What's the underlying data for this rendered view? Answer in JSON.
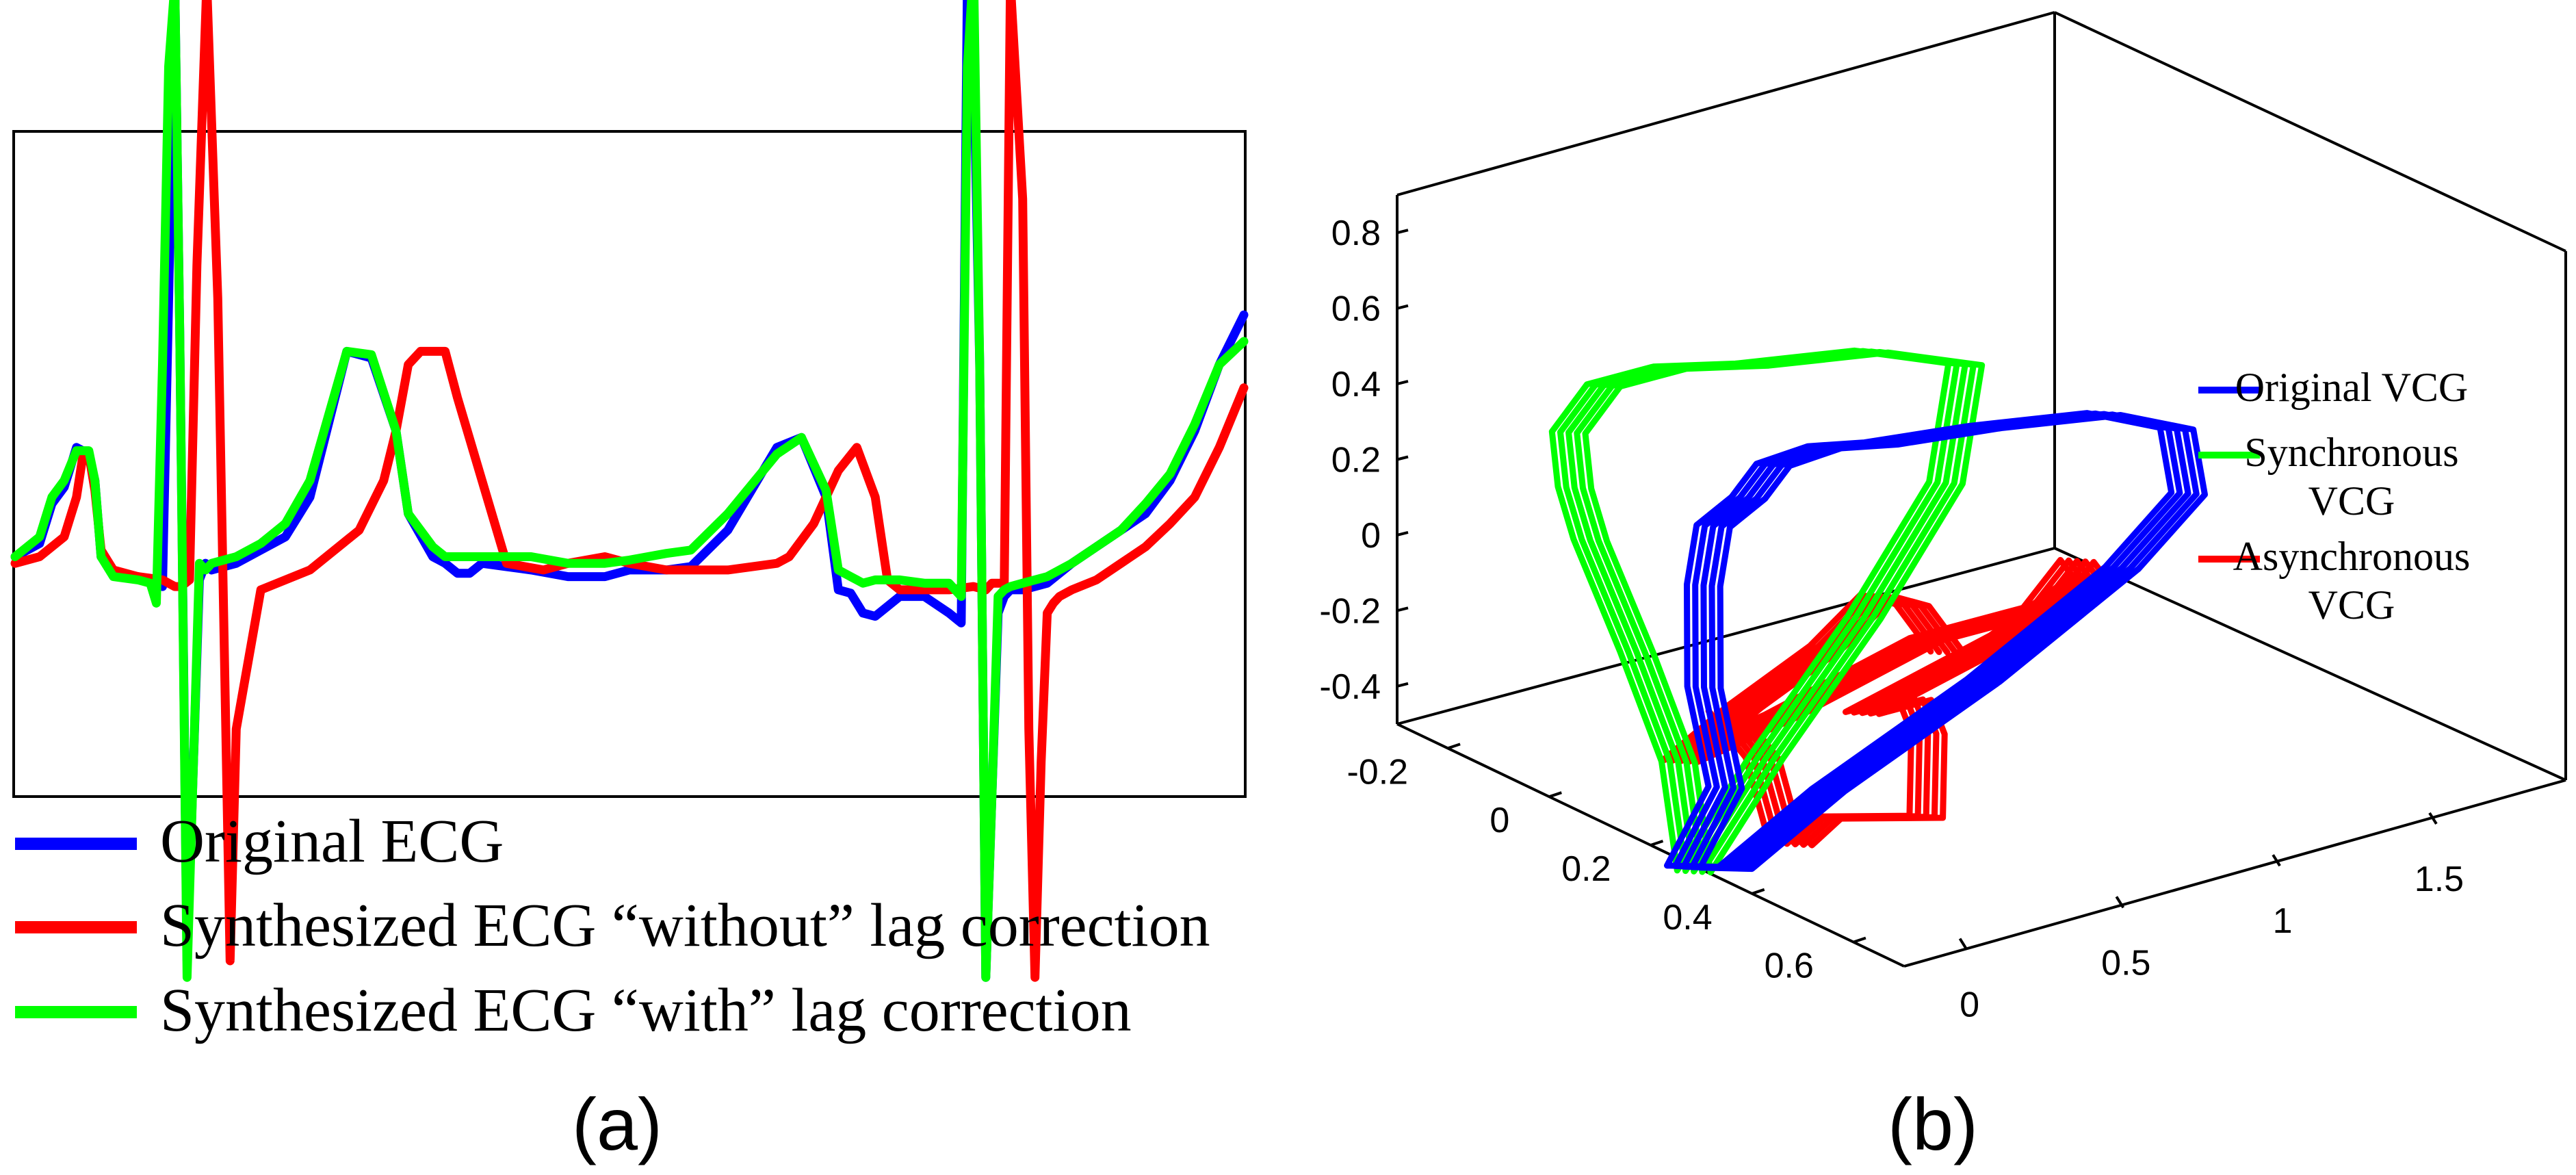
{
  "panel_a": {
    "caption": "(a)",
    "legend": [
      {
        "label": "Original ECG",
        "color": "#0000ff"
      },
      {
        "label": "Synthesized ECG “without” lag correction",
        "color": "#ff0000"
      },
      {
        "label": "Synthesized ECG “with” lag correction",
        "color": "#00ff00"
      }
    ]
  },
  "panel_b": {
    "caption": "(b)",
    "legend": [
      {
        "label_lines": [
          "Original VCG"
        ],
        "color": "#0000ff"
      },
      {
        "label_lines": [
          "Synchronous",
          "VCG"
        ],
        "color": "#00ff00"
      },
      {
        "label_lines": [
          "Asynchronous",
          "VCG"
        ],
        "color": "#ff0000"
      }
    ]
  },
  "chart_data": [
    {
      "type": "line",
      "title": "",
      "xlabel": "",
      "ylabel": "",
      "xlim": [
        0,
        100
      ],
      "ylim": [
        -1.0,
        1.0
      ],
      "axes_visible": false,
      "grid": false,
      "legend_position": "below",
      "series": [
        {
          "name": "Original ECG",
          "color": "#0000ff",
          "x": [
            0,
            2,
            3,
            4,
            5,
            6,
            6.5,
            7,
            8,
            10,
            11,
            12,
            12.5,
            13,
            13.4,
            14,
            15,
            15.5,
            16,
            18,
            20,
            22,
            24,
            27,
            29,
            31,
            32,
            34,
            35,
            36,
            37,
            38,
            40,
            42,
            45,
            48,
            50,
            53,
            55,
            58,
            62,
            64,
            66,
            67,
            68,
            68.5,
            69,
            70,
            72,
            74,
            76,
            77,
            77.5,
            78,
            78.5,
            79,
            79.5,
            80,
            80.5,
            81,
            82,
            84,
            86,
            88,
            90,
            92,
            94,
            96,
            98,
            100
          ],
          "y": [
            -0.28,
            -0.24,
            -0.12,
            -0.07,
            0.05,
            0.03,
            -0.05,
            -0.28,
            -0.33,
            -0.34,
            -0.35,
            -0.37,
            0.5,
            1.45,
            0.4,
            -1.5,
            -0.35,
            -0.3,
            -0.32,
            -0.3,
            -0.26,
            -0.22,
            -0.1,
            0.34,
            0.32,
            0.1,
            -0.15,
            -0.28,
            -0.3,
            -0.33,
            -0.33,
            -0.3,
            -0.31,
            -0.32,
            -0.34,
            -0.34,
            -0.32,
            -0.32,
            -0.31,
            -0.2,
            0.05,
            0.08,
            -0.1,
            -0.38,
            -0.39,
            -0.42,
            -0.45,
            -0.46,
            -0.4,
            -0.4,
            -0.45,
            -0.48,
            1.45,
            1.25,
            0.3,
            -1.55,
            -1.0,
            -0.45,
            -0.4,
            -0.38,
            -0.38,
            -0.36,
            -0.3,
            -0.25,
            -0.2,
            -0.15,
            -0.05,
            0.1,
            0.3,
            0.45
          ]
        },
        {
          "name": "Synthesized ECG “without” lag correction",
          "color": "#ff0000",
          "x": [
            0,
            2,
            4,
            5,
            5.5,
            6,
            6.5,
            7,
            8,
            10,
            12,
            13,
            13.5,
            14.2,
            14.8,
            15.6,
            16.5,
            17.5,
            18,
            20,
            22,
            24,
            26,
            28,
            30,
            31,
            32,
            33,
            35,
            36,
            38,
            40,
            43,
            45,
            48,
            50,
            53,
            55,
            58,
            62,
            63,
            65,
            67,
            68.5,
            70,
            71,
            72,
            74,
            76,
            78,
            79,
            79.5,
            80.5,
            81,
            82,
            82.5,
            83,
            83.5,
            84,
            84.5,
            85,
            86,
            88,
            90,
            92,
            94,
            96,
            98,
            100
          ],
          "y": [
            -0.3,
            -0.28,
            -0.22,
            -0.1,
            0.02,
            0.03,
            -0.08,
            -0.26,
            -0.32,
            -0.34,
            -0.35,
            -0.37,
            -0.37,
            -0.35,
            0.6,
            1.45,
            0.5,
            -1.5,
            -0.8,
            -0.38,
            -0.35,
            -0.32,
            -0.26,
            -0.2,
            -0.05,
            0.1,
            0.3,
            0.34,
            0.34,
            0.2,
            -0.05,
            -0.3,
            -0.32,
            -0.3,
            -0.28,
            -0.3,
            -0.32,
            -0.32,
            -0.32,
            -0.3,
            -0.28,
            -0.18,
            -0.02,
            0.05,
            -0.1,
            -0.35,
            -0.38,
            -0.38,
            -0.38,
            -0.37,
            -0.38,
            -0.36,
            -0.36,
            1.45,
            0.8,
            -0.8,
            -1.55,
            -0.9,
            -0.45,
            -0.42,
            -0.4,
            -0.38,
            -0.35,
            -0.3,
            -0.25,
            -0.18,
            -0.1,
            0.05,
            0.23
          ]
        },
        {
          "name": "Synthesized ECG “with” lag correction",
          "color": "#00ff00",
          "x": [
            0,
            2,
            3,
            4,
            5,
            6,
            6.5,
            7,
            8,
            10,
            11,
            11.5,
            12,
            12.5,
            13,
            13.4,
            14,
            15,
            15.5,
            16,
            18,
            20,
            22,
            24,
            27,
            29,
            31,
            32,
            34,
            35,
            36,
            38,
            40,
            42,
            45,
            48,
            50,
            53,
            55,
            58,
            62,
            64,
            66,
            67,
            68,
            68.5,
            69,
            70,
            72,
            74,
            76,
            77,
            77.5,
            78,
            78.5,
            79,
            79.5,
            80,
            80.5,
            81,
            82,
            84,
            86,
            88,
            90,
            92,
            94,
            96,
            98,
            100
          ],
          "y": [
            -0.28,
            -0.22,
            -0.1,
            -0.05,
            0.04,
            0.04,
            -0.05,
            -0.28,
            -0.34,
            -0.35,
            -0.36,
            -0.42,
            0.3,
            1.2,
            1.45,
            0.4,
            -1.55,
            -0.3,
            -0.32,
            -0.3,
            -0.28,
            -0.24,
            -0.18,
            -0.05,
            0.34,
            0.33,
            0.1,
            -0.15,
            -0.25,
            -0.28,
            -0.28,
            -0.28,
            -0.28,
            -0.28,
            -0.3,
            -0.3,
            -0.29,
            -0.27,
            -0.26,
            -0.15,
            0.03,
            0.08,
            -0.08,
            -0.32,
            -0.34,
            -0.35,
            -0.36,
            -0.35,
            -0.35,
            -0.36,
            -0.36,
            -0.4,
            1.2,
            1.5,
            0.3,
            -1.55,
            -1.0,
            -0.4,
            -0.38,
            -0.37,
            -0.36,
            -0.34,
            -0.3,
            -0.25,
            -0.2,
            -0.12,
            -0.03,
            0.12,
            0.3,
            0.37
          ]
        }
      ]
    },
    {
      "type": "line3d",
      "title": "",
      "xlabel": "",
      "ylabel": "",
      "zlabel": "",
      "xlim": [
        -0.3,
        0.7
      ],
      "ylim": [
        -0.2,
        1.9
      ],
      "zlim": [
        -0.5,
        0.9
      ],
      "x_ticks": [
        "-0.2",
        "0",
        "0.2",
        "0.4",
        "0.6"
      ],
      "y_ticks": [
        "0",
        "0.5",
        "1",
        "1.5"
      ],
      "z_ticks": [
        "-0.4",
        "-0.2",
        "0",
        "0.2",
        "0.4",
        "0.6",
        "0.8"
      ],
      "grid": false,
      "legend_position": "right",
      "series": [
        {
          "name": "Original VCG",
          "color": "#0000ff",
          "x": [
            0.08,
            0.1,
            0.12,
            0.15,
            0.2,
            0.3,
            0.38,
            0.45,
            0.5,
            0.55,
            0.6,
            0.62,
            0.55,
            0.45,
            0.3,
            0.18,
            0.12,
            0.08
          ],
          "y": [
            0.1,
            0.2,
            0.1,
            0.05,
            0.0,
            -0.05,
            -0.1,
            -0.05,
            0.05,
            0.3,
            0.6,
            0.8,
            0.95,
            0.9,
            0.7,
            0.4,
            0.2,
            0.1
          ],
          "z": [
            -0.7,
            -0.5,
            -0.2,
            0.1,
            0.3,
            0.45,
            0.6,
            0.68,
            0.7,
            0.72,
            0.72,
            0.65,
            0.4,
            0.15,
            -0.2,
            -0.5,
            -0.7,
            -0.7
          ]
        },
        {
          "name": "Synchronous VCG",
          "color": "#00ff00",
          "x": [
            0.1,
            0.1,
            0.08,
            0.05,
            0.05,
            0.1,
            0.2,
            0.3,
            0.4,
            0.45,
            0.45,
            0.35,
            0.25,
            0.15,
            0.1
          ],
          "y": [
            0.1,
            0.05,
            -0.05,
            -0.15,
            -0.2,
            -0.3,
            -0.35,
            -0.3,
            -0.2,
            0.1,
            0.4,
            0.5,
            0.4,
            0.25,
            0.1
          ],
          "z": [
            -0.7,
            -0.4,
            -0.1,
            0.2,
            0.35,
            0.55,
            0.75,
            0.85,
            0.9,
            0.9,
            0.8,
            0.4,
            0.0,
            -0.4,
            -0.7
          ]
        },
        {
          "name": "Asynchronous VCG",
          "color": "#ff0000",
          "x": [
            0.6,
            0.5,
            0.4,
            0.3,
            0.2,
            0.1,
            0.15,
            0.25,
            0.35,
            0.3,
            0.2,
            0.1,
            0.0,
            0.2,
            0.35,
            0.5,
            0.62,
            0.45,
            0.3,
            0.15,
            0.05,
            0.1
          ],
          "y": [
            0.1,
            0.15,
            0.2,
            0.2,
            0.1,
            0.05,
            0.3,
            0.6,
            0.8,
            1.0,
            1.2,
            1.1,
            0.8,
            0.5,
            0.4,
            0.2,
            0.0,
            -0.05,
            0.1,
            0.3,
            0.4,
            0.2
          ],
          "z": [
            0.2,
            0.25,
            0.2,
            0.0,
            -0.2,
            -0.4,
            -0.3,
            -0.1,
            0.0,
            0.05,
            -0.1,
            -0.3,
            -0.5,
            -0.3,
            -0.15,
            -0.1,
            -0.2,
            -0.3,
            -0.5,
            -0.6,
            -0.5,
            -0.3
          ]
        }
      ]
    }
  ]
}
